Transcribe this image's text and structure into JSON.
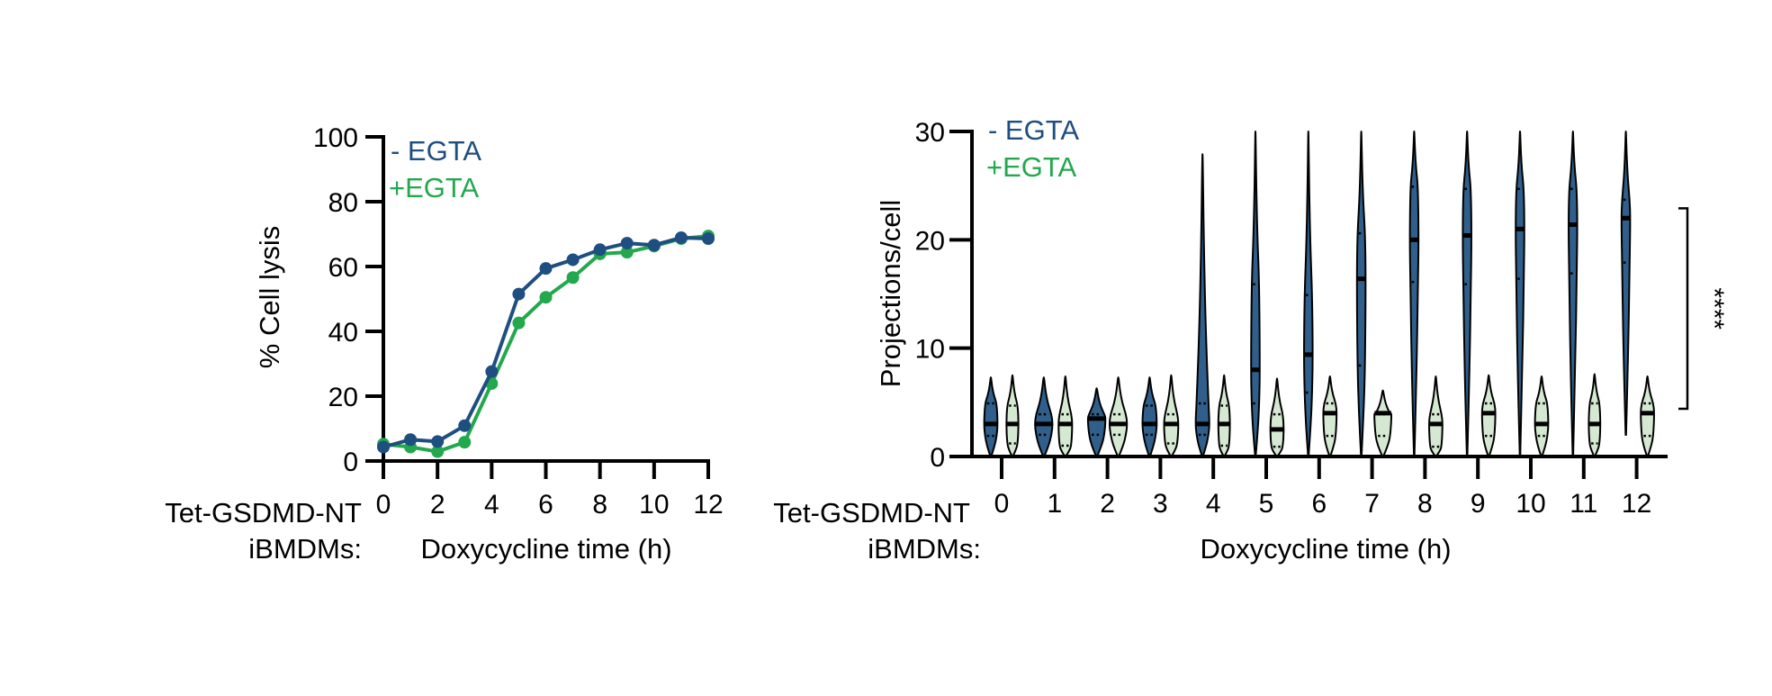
{
  "colors": {
    "minus_egta": "#1f4e80",
    "plus_egta": "#23a84e",
    "violin_minus_fill": "#2f5f8a",
    "violin_plus_fill": "#d5e8d2",
    "axis": "#000000"
  },
  "row_label": {
    "line1": "Tet-GSDMD-NT",
    "line2": "iBMDMs:"
  },
  "chart_data": [
    {
      "id": "cell-lysis",
      "type": "line",
      "title": "",
      "xlabel": "Doxycycline time (h)",
      "ylabel": "% Cell lysis",
      "xlim": [
        0,
        12
      ],
      "ylim": [
        0,
        100
      ],
      "xticks": [
        0,
        2,
        4,
        6,
        8,
        10,
        12
      ],
      "yticks": [
        0,
        20,
        40,
        60,
        80,
        100
      ],
      "grid": false,
      "legend_position": "top-left",
      "x": [
        0,
        1,
        2,
        3,
        4,
        5,
        6,
        7,
        8,
        9,
        10,
        11,
        12
      ],
      "series": [
        {
          "name": "- EGTA",
          "color": "#1f4e80",
          "values": [
            4.3,
            6.6,
            6.0,
            10.9,
            27.6,
            51.5,
            59.4,
            62.1,
            65.2,
            67.2,
            66.6,
            68.9,
            68.6
          ]
        },
        {
          "name": "+EGTA",
          "color": "#23a84e",
          "values": [
            5.2,
            4.3,
            2.9,
            5.8,
            23.9,
            42.6,
            50.5,
            56.6,
            63.9,
            64.4,
            66.3,
            68.6,
            69.4
          ]
        }
      ]
    },
    {
      "id": "projections",
      "type": "violin",
      "title": "",
      "xlabel": "Doxycycline time (h)",
      "ylabel": "Projections/cell",
      "ylim": [
        0,
        30
      ],
      "yticks": [
        0,
        10,
        20,
        30
      ],
      "grid": false,
      "legend_position": "top-left",
      "categories": [
        "0",
        "1",
        "2",
        "3",
        "4",
        "5",
        "6",
        "7",
        "8",
        "9",
        "10",
        "11",
        "12"
      ],
      "series": [
        {
          "name": "- EGTA",
          "color": "#1f4e80",
          "min": [
            0,
            0,
            0,
            0,
            0,
            0,
            0,
            0,
            0,
            0,
            0,
            0,
            2.0
          ],
          "q1": [
            1.9,
            2.0,
            2.0,
            2.0,
            2.0,
            4.9,
            5.9,
            8.4,
            16.1,
            15.9,
            16.4,
            16.9,
            17.9
          ],
          "median": [
            3,
            3,
            3.5,
            3,
            3,
            8,
            9.4,
            16.4,
            20,
            20.4,
            21,
            21.4,
            22
          ],
          "q3": [
            4.9,
            3.9,
            3.9,
            4.7,
            4.9,
            15.9,
            14.9,
            20.6,
            24.9,
            24.7,
            24.7,
            24.7,
            23.7
          ],
          "max": [
            7.3,
            7.3,
            6.3,
            7.3,
            27.9,
            30,
            30,
            30,
            30,
            30,
            30,
            30,
            30
          ]
        },
        {
          "name": "+EGTA",
          "color": "#23a84e",
          "min": [
            0,
            0,
            0,
            0,
            0,
            0,
            0,
            0,
            0,
            0,
            0,
            0,
            0
          ],
          "q1": [
            1.2,
            1.0,
            2.0,
            1.2,
            1.0,
            0.9,
            1.9,
            1.9,
            0.9,
            1.9,
            1.9,
            1.2,
            1.9
          ],
          "median": [
            3,
            3,
            3,
            3,
            3,
            2.5,
            4,
            4,
            3,
            4,
            3,
            3,
            4
          ],
          "q3": [
            4.7,
            3.9,
            3.9,
            3.9,
            4.7,
            3.9,
            4.9,
            3.9,
            3.9,
            4.9,
            4.9,
            4.9,
            4.9
          ],
          "max": [
            7.5,
            7.4,
            7.3,
            7.5,
            7.5,
            7.2,
            7.4,
            6.1,
            7.4,
            7.5,
            7.4,
            7.6,
            7.4
          ]
        }
      ],
      "annotations": [
        {
          "type": "significance-bracket",
          "label": "****",
          "y_range": [
            4.4,
            22.9
          ]
        }
      ]
    }
  ]
}
